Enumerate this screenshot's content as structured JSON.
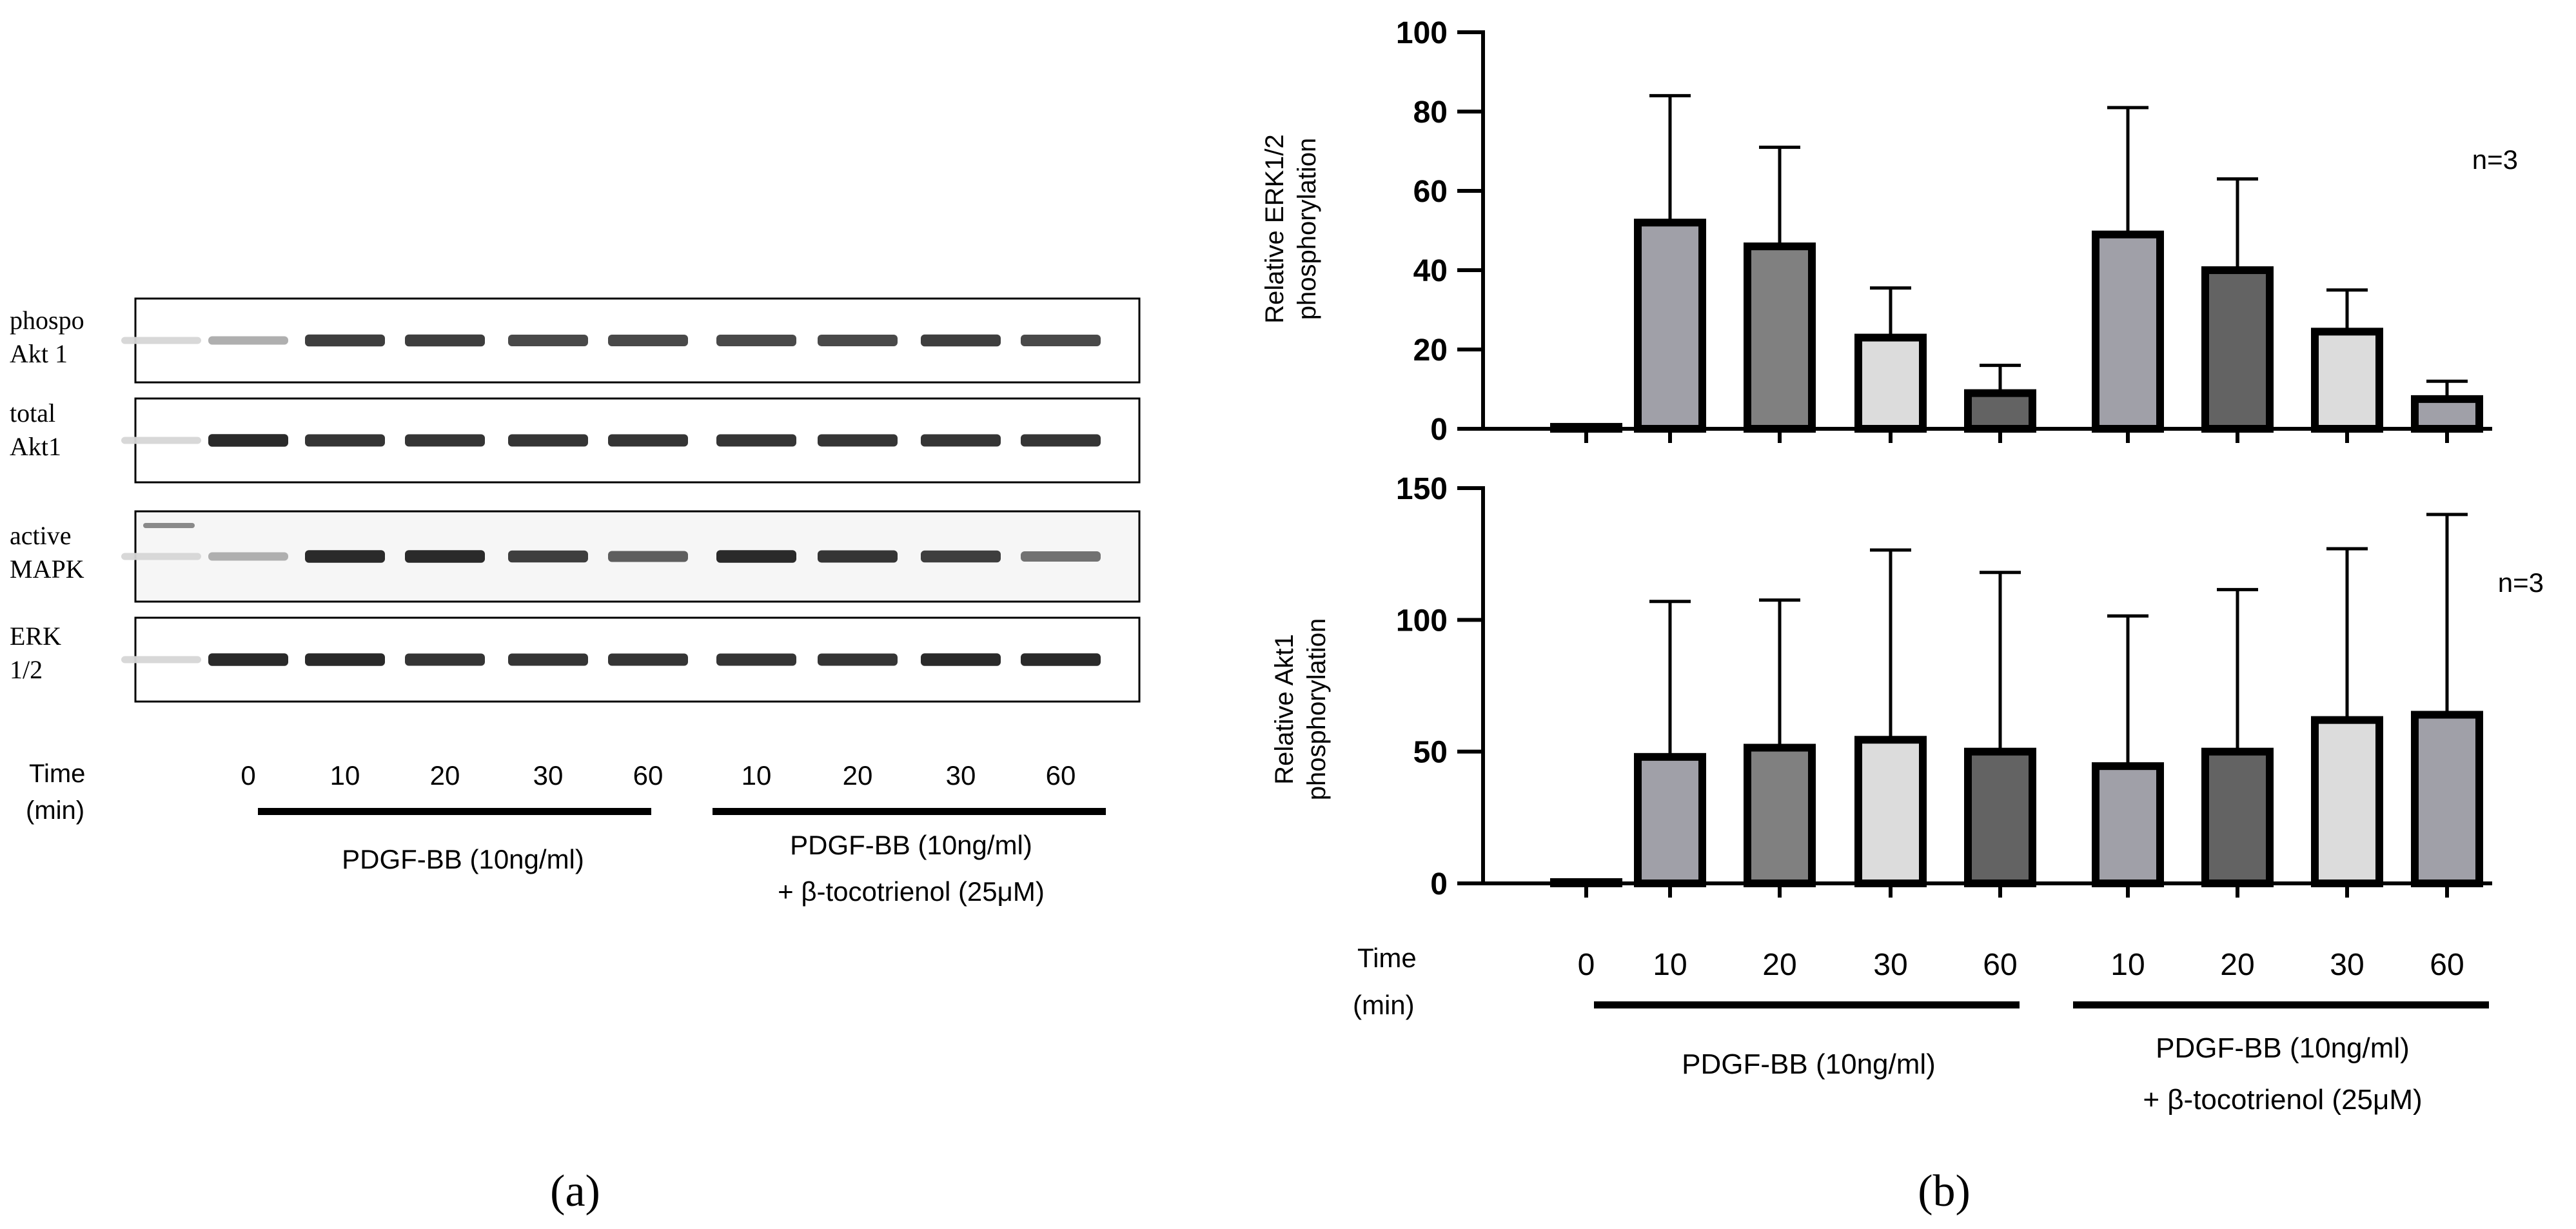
{
  "panel_a": {
    "label": "(a)",
    "blots": [
      {
        "label_line1": "phospo",
        "label_line2": "Akt 1",
        "intensities": [
          0.1,
          0.3,
          0.85,
          0.85,
          0.8,
          0.8,
          0.8,
          0.8,
          0.85,
          0.8
        ],
        "marker": false
      },
      {
        "label_line1": "total",
        "label_line2": "Akt1",
        "intensities": [
          0.1,
          0.95,
          0.9,
          0.9,
          0.9,
          0.9,
          0.9,
          0.9,
          0.9,
          0.9
        ],
        "marker": false
      },
      {
        "label_line1": "active",
        "label_line2": "MAPK",
        "intensities": [
          0.1,
          0.3,
          0.95,
          0.95,
          0.85,
          0.7,
          0.95,
          0.9,
          0.85,
          0.6
        ],
        "marker": true
      },
      {
        "label_line1": "ERK",
        "label_line2": "1/2",
        "intensities": [
          0.1,
          0.95,
          0.95,
          0.9,
          0.9,
          0.9,
          0.9,
          0.9,
          0.95,
          0.95
        ],
        "marker": false
      }
    ],
    "time_label_line1": "Time",
    "time_label_line2": "(min)",
    "time_points": [
      "0",
      "10",
      "20",
      "30",
      "60",
      "10",
      "20",
      "30",
      "60"
    ],
    "group1_label": "PDGF-BB (10ng/ml)",
    "group2_label_line1": "PDGF-BB (10ng/ml)",
    "group2_label_line2": "+ β-tocotrienol (25μM)"
  },
  "panel_b": {
    "label": "(b)",
    "time_label_line1": "Time",
    "time_label_line2": "(min)",
    "group1_label": "PDGF-BB (10ng/ml)",
    "group2_label_line1": "PDGF-BB (10ng/ml)",
    "group2_label_line2": "+ β-tocotrienol (25μM)"
  },
  "colors": {
    "light_gray": "#a0a0a8",
    "mid_gray": "#808080",
    "pale_gray": "#dcdcdc",
    "dark_gray": "#636363",
    "blank": "#ffffff"
  },
  "chart_data": [
    {
      "type": "bar",
      "ylabel_line1": "Relative ERK1/2",
      "ylabel_line2": "phosphorylation",
      "annotation": "n=3",
      "categories": [
        "0",
        "10",
        "20",
        "30",
        "60",
        "10",
        "20",
        "30",
        "60"
      ],
      "values": [
        0.5,
        52,
        46,
        23,
        9,
        49,
        40,
        24.5,
        7.5
      ],
      "errors": [
        0,
        32,
        25,
        12.5,
        7,
        32,
        23,
        10.5,
        4.5
      ],
      "fill_keys": [
        "blank",
        "light_gray",
        "mid_gray",
        "pale_gray",
        "dark_gray",
        "light_gray",
        "dark_gray",
        "pale_gray",
        "light_gray"
      ],
      "ylim": [
        0,
        100
      ],
      "yticks": [
        "0",
        "20",
        "40",
        "60",
        "80",
        "100"
      ]
    },
    {
      "type": "bar",
      "ylabel_line1": "Relative Akt1",
      "ylabel_line2": "phosphorylation",
      "annotation": "n=3",
      "categories": [
        "0",
        "10",
        "20",
        "30",
        "60",
        "10",
        "20",
        "30",
        "60"
      ],
      "values": [
        0.5,
        48,
        51.5,
        54.5,
        50,
        44.5,
        50,
        62,
        64
      ],
      "errors": [
        0,
        59,
        56,
        72,
        68,
        57,
        61.5,
        65,
        76
      ],
      "fill_keys": [
        "blank",
        "light_gray",
        "mid_gray",
        "pale_gray",
        "dark_gray",
        "light_gray",
        "dark_gray",
        "pale_gray",
        "light_gray"
      ],
      "ylim": [
        0,
        150
      ],
      "yticks": [
        "0",
        "50",
        "100",
        "150"
      ]
    }
  ]
}
